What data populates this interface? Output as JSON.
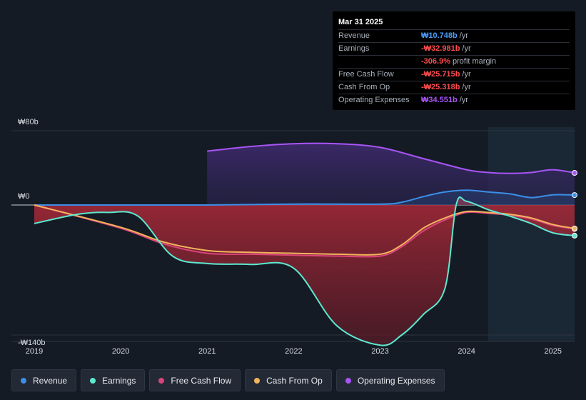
{
  "tooltip": {
    "date": "Mar 31 2025",
    "rows": [
      {
        "label": "Revenue",
        "value": "₩10.748b",
        "unit": "/yr",
        "color": "#4a9eff"
      },
      {
        "label": "Earnings",
        "value": "-₩32.981b",
        "unit": "/yr",
        "color": "#ff4d4f"
      },
      {
        "label": "",
        "value": "-306.9%",
        "unit": "profit margin",
        "color": "#ff4d4f"
      },
      {
        "label": "Free Cash Flow",
        "value": "-₩25.715b",
        "unit": "/yr",
        "color": "#ff4d4f"
      },
      {
        "label": "Cash From Op",
        "value": "-₩25.318b",
        "unit": "/yr",
        "color": "#ff4d4f"
      },
      {
        "label": "Operating Expenses",
        "value": "₩34.551b",
        "unit": "/yr",
        "color": "#a855f7"
      }
    ]
  },
  "legend": [
    {
      "label": "Revenue",
      "color": "#3b8fe8"
    },
    {
      "label": "Earnings",
      "color": "#5de8d0"
    },
    {
      "label": "Free Cash Flow",
      "color": "#d9457a"
    },
    {
      "label": "Cash From Op",
      "color": "#f3b35c"
    },
    {
      "label": "Operating Expenses",
      "color": "#a855f7"
    }
  ],
  "chart_data": {
    "type": "line",
    "y_tick_labels": [
      "₩80b",
      "₩0",
      "-₩140b"
    ],
    "y_ticks": [
      80,
      0,
      -140
    ],
    "ylim": [
      -140,
      80
    ],
    "x_tick_labels": [
      "2019",
      "2020",
      "2021",
      "2022",
      "2023",
      "2024",
      "2025"
    ],
    "xlim": [
      2019,
      2025.25
    ],
    "forecast_start": 2024.25,
    "series": [
      {
        "name": "Revenue",
        "color": "#3b8fe8",
        "x": [
          2019,
          2020,
          2021,
          2022,
          2023,
          2023.25,
          2023.5,
          2023.75,
          2024,
          2024.25,
          2024.5,
          2024.75,
          2025,
          2025.25
        ],
        "y": [
          0,
          0,
          0,
          1,
          1,
          3,
          9,
          14,
          16,
          14,
          12,
          8,
          11,
          10.7
        ]
      },
      {
        "name": "Earnings",
        "color": "#5de8d0",
        "x": [
          2019,
          2019.5,
          2019.85,
          2020.2,
          2020.6,
          2021,
          2021.5,
          2022,
          2022.5,
          2023,
          2023.25,
          2023.5,
          2023.75,
          2023.88,
          2024,
          2024.25,
          2024.5,
          2024.75,
          2025,
          2025.25
        ],
        "y": [
          -20,
          -10,
          -8,
          -12,
          -55,
          -63,
          -64,
          -68,
          -130,
          -151,
          -140,
          -118,
          -90,
          0,
          4,
          -5,
          -12,
          -20,
          -30,
          -33
        ]
      },
      {
        "name": "Free Cash Flow",
        "color": "#d9457a",
        "x": [
          2019,
          2020,
          2020.5,
          2021,
          2021.5,
          2022,
          2022.5,
          2023,
          2023.25,
          2023.5,
          2023.75,
          2024,
          2024.25,
          2024.5,
          2024.75,
          2025,
          2025.25
        ],
        "y": [
          0,
          -25,
          -42,
          -52,
          -53,
          -54,
          -55,
          -55,
          -45,
          -28,
          -16,
          -8,
          -9,
          -11,
          -15,
          -22,
          -25.7
        ]
      },
      {
        "name": "Cash From Op",
        "color": "#f3b35c",
        "x": [
          2019,
          2020,
          2020.5,
          2021,
          2021.5,
          2022,
          2022.5,
          2023,
          2023.25,
          2023.5,
          2023.75,
          2024,
          2024.25,
          2024.5,
          2024.75,
          2025,
          2025.25
        ],
        "y": [
          0,
          -24,
          -40,
          -49,
          -51,
          -52,
          -53,
          -53,
          -43,
          -25,
          -14,
          -7,
          -8,
          -10,
          -14,
          -21,
          -25.3
        ]
      },
      {
        "name": "Operating Expenses",
        "color": "#a855f7",
        "x": [
          2021,
          2021.5,
          2022,
          2022.5,
          2023,
          2023.5,
          2024,
          2024.25,
          2024.5,
          2024.75,
          2025,
          2025.25
        ],
        "y": [
          58,
          63,
          66,
          66,
          62,
          50,
          38,
          35,
          34,
          35,
          38,
          34.6
        ]
      }
    ]
  }
}
